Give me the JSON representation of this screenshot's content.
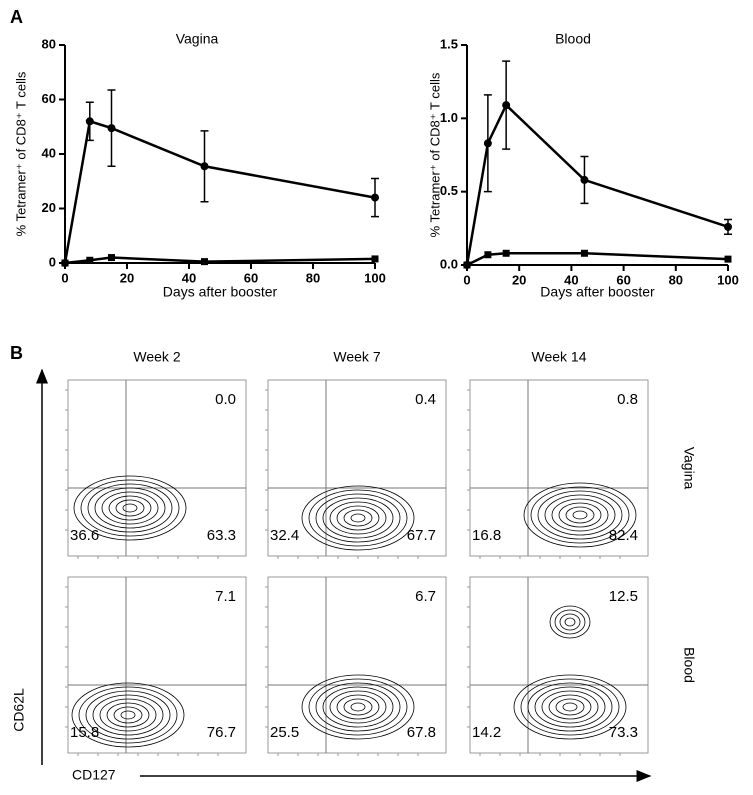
{
  "panel_labels": [
    "A",
    "B"
  ],
  "chart_data": [
    {
      "type": "line",
      "title": "Vagina",
      "xlabel": "Days after booster",
      "ylabel": "% Tetramer⁺ of CD8⁺ T cells",
      "x": [
        0,
        8,
        15,
        45,
        100
      ],
      "xlim": [
        0,
        100
      ],
      "xticks": [
        0,
        20,
        40,
        60,
        80,
        100
      ],
      "ylim": [
        0,
        80
      ],
      "yticks": [
        0,
        20,
        40,
        60,
        80
      ],
      "series": [
        {
          "color": "#000000",
          "marker": "circle",
          "values": [
            0,
            52,
            49.5,
            35.5,
            24
          ],
          "errors": [
            null,
            7,
            14,
            13,
            7
          ]
        },
        {
          "color": "#000000",
          "marker": "square",
          "values": [
            0,
            1,
            2,
            0.5,
            1.5
          ]
        }
      ]
    },
    {
      "type": "line",
      "title": "Blood",
      "xlabel": "Days after booster",
      "ylabel": "% Tetramer⁺ of CD8⁺ T cells",
      "x": [
        0,
        8,
        15,
        45,
        100
      ],
      "xlim": [
        0,
        100
      ],
      "xticks": [
        0,
        20,
        40,
        60,
        80,
        100
      ],
      "ylim": [
        0,
        1.5
      ],
      "yticks": [
        {
          "value": 0,
          "label": "0.0"
        },
        0.5,
        {
          "value": 1,
          "label": "1.0"
        },
        1.5
      ],
      "series": [
        {
          "color": "#000000",
          "marker": "circle",
          "values": [
            0,
            0.83,
            1.09,
            0.58,
            0.26
          ],
          "errors": [
            null,
            0.33,
            0.3,
            0.16,
            0.05
          ]
        },
        {
          "color": "#000000",
          "marker": "square",
          "values": [
            0,
            0.07,
            0.08,
            0.08,
            0.04
          ]
        }
      ]
    }
  ],
  "flow_panel": {
    "columns": [
      "Week 2",
      "Week 7",
      "Week 14"
    ],
    "y_axis": "CD62L",
    "x_axis": "CD127",
    "rows": [
      {
        "label": "Vagina",
        "upper_right": [
          "0.0",
          "0.4",
          "0.8"
        ],
        "lower_left": [
          "36.6",
          "32.4",
          "16.8"
        ],
        "lower_right": [
          "63.3",
          "67.7",
          "82.4"
        ]
      },
      {
        "label": "Blood",
        "upper_right": [
          "7.1",
          "6.7",
          "12.5"
        ],
        "lower_left": [
          "15.8",
          "25.5",
          "14.2"
        ],
        "lower_right": [
          "76.7",
          "67.8",
          "73.3"
        ]
      }
    ]
  }
}
